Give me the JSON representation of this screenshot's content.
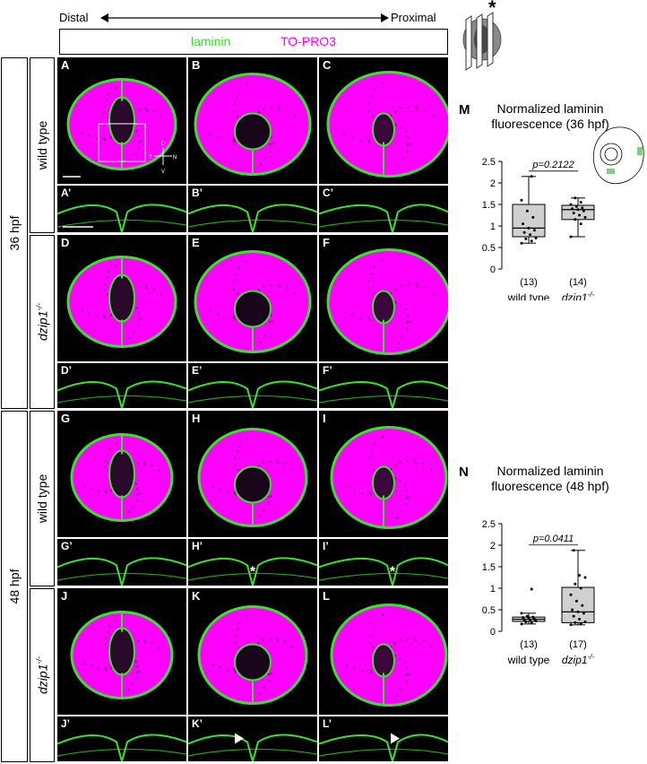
{
  "header": {
    "distal_label": "Distal",
    "proximal_label": "Proximal",
    "legend": {
      "laminin": "laminin",
      "topro3": "TO-PRO3"
    },
    "colors": {
      "laminin": "#39e22c",
      "topro3": "#ff00ff"
    },
    "section_star": "*"
  },
  "rows": {
    "stage_36": "36 hpf",
    "stage_48": "48 hpf",
    "wild_type": "wild type",
    "mutant": "dzip1",
    "mutant_sup": "-/-"
  },
  "panels": {
    "top": [
      "A",
      "B",
      "C",
      "D",
      "E",
      "F",
      "G",
      "H",
      "I",
      "J",
      "K",
      "L"
    ],
    "inset": [
      "A’",
      "B’",
      "C’",
      "D’",
      "E’",
      "F’",
      "G’",
      "H’",
      "I’",
      "J’",
      "K’",
      "L’"
    ],
    "axis_labels": {
      "d": "D",
      "v": "V",
      "t": "T",
      "n": "N"
    },
    "asterisk": "*"
  },
  "chart_data": [
    {
      "panel": "M",
      "type": "box",
      "title": "Normalized laminin fluorescence (36 hpf)",
      "title_lines": [
        "Normalized laminin",
        "fluorescence (36 hpf)"
      ],
      "categories": [
        "wild type",
        "dzip1-/-"
      ],
      "category_main": [
        "wild type",
        "dzip1"
      ],
      "category_sup": [
        "",
        "-/-"
      ],
      "n_labels": [
        "(13)",
        "(14)"
      ],
      "yticks": [
        0,
        0.5,
        1,
        1.5,
        2,
        2.5
      ],
      "ylim": [
        0,
        2.5
      ],
      "pvalue": "p=0.2122",
      "boxes": [
        {
          "min": 0.6,
          "q1": 0.75,
          "median": 0.95,
          "q3": 1.5,
          "max": 2.15
        },
        {
          "min": 0.75,
          "q1": 1.15,
          "median": 1.38,
          "q3": 1.48,
          "max": 1.65
        }
      ],
      "points": [
        [
          0.6,
          0.65,
          0.7,
          0.72,
          0.8,
          0.85,
          0.9,
          0.95,
          1.05,
          1.2,
          1.35,
          1.6,
          2.15
        ],
        [
          0.75,
          1.05,
          1.15,
          1.2,
          1.25,
          1.3,
          1.35,
          1.38,
          1.4,
          1.42,
          1.45,
          1.5,
          1.55,
          1.65
        ]
      ]
    },
    {
      "panel": "N",
      "type": "box",
      "title": "Normalized laminin fluorescence (48 hpf)",
      "title_lines": [
        "Normalized laminin",
        "fluorescence (48 hpf)"
      ],
      "categories": [
        "wild type",
        "dzip1-/-"
      ],
      "category_main": [
        "wild type",
        "dzip1"
      ],
      "category_sup": [
        "",
        "-/-"
      ],
      "n_labels": [
        "(13)",
        "(17)"
      ],
      "yticks": [
        0,
        0.5,
        1,
        1.5,
        2,
        2.5
      ],
      "ylim": [
        0,
        2.5
      ],
      "pvalue": "p=0.0411",
      "boxes": [
        {
          "min": 0.17,
          "q1": 0.23,
          "median": 0.28,
          "q3": 0.33,
          "max": 0.42
        },
        {
          "min": 0.15,
          "q1": 0.2,
          "median": 0.45,
          "q3": 1.02,
          "max": 1.88
        }
      ],
      "points": [
        [
          0.17,
          0.2,
          0.22,
          0.24,
          0.25,
          0.27,
          0.28,
          0.3,
          0.32,
          0.33,
          0.35,
          0.42,
          0.98
        ],
        [
          0.15,
          0.18,
          0.2,
          0.22,
          0.28,
          0.35,
          0.42,
          0.45,
          0.5,
          0.6,
          0.7,
          0.85,
          1.0,
          1.1,
          1.25,
          1.3,
          1.88
        ]
      ]
    }
  ]
}
